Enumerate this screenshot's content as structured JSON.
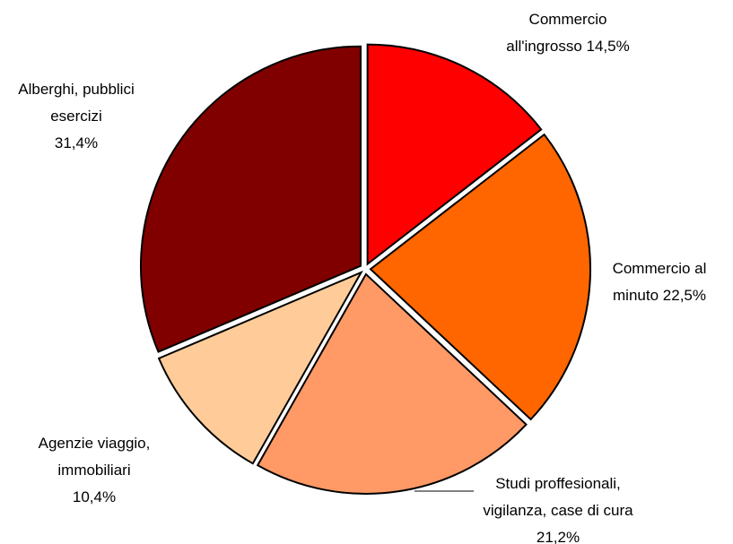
{
  "chart_data": {
    "type": "pie",
    "categories": [
      "Commercio all'ingrosso",
      "Commercio al minuto",
      "Studi proffesionali, vigilanza, case di cura",
      "Agenzie viaggio, immobiliari",
      "Alberghi, pubblici esercizi"
    ],
    "values": [
      14.5,
      22.5,
      21.2,
      10.4,
      31.4
    ],
    "value_labels": [
      "14,5%",
      "22,5%",
      "21,2%",
      "10,4%",
      "31,4%"
    ],
    "colors": [
      "#ff0000",
      "#ff6600",
      "#ff9966",
      "#ffcc99",
      "#800000"
    ]
  }
}
